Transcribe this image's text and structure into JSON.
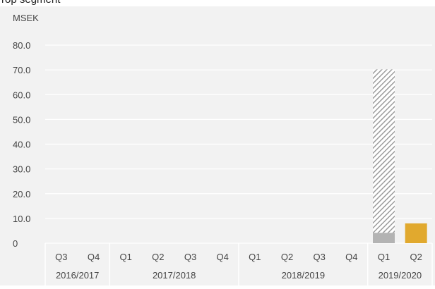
{
  "top_text": "rop segment",
  "chart_data": {
    "type": "bar",
    "unit_label": "MSEK",
    "ylim": [
      0,
      80
    ],
    "y_ticks": [
      "80.0",
      "70.0",
      "60.0",
      "50.0",
      "40.0",
      "30.0",
      "20.0",
      "10.0",
      "0"
    ],
    "y_tick_values": [
      80,
      70,
      60,
      50,
      40,
      30,
      20,
      10,
      0
    ],
    "categories": [
      "Q3",
      "Q4",
      "Q1",
      "Q2",
      "Q3",
      "Q4",
      "Q1",
      "Q2",
      "Q3",
      "Q4",
      "Q1",
      "Q2"
    ],
    "year_groups": [
      {
        "label": "2016/2017",
        "count": 2
      },
      {
        "label": "2017/2018",
        "count": 4
      },
      {
        "label": "2018/2019",
        "count": 4
      },
      {
        "label": "2019/2020",
        "count": 2
      }
    ],
    "series": [
      {
        "values": [
          0,
          0,
          0,
          0,
          0,
          0,
          0,
          0,
          0,
          0,
          4.2,
          0
        ],
        "color": "#b3b3b3"
      },
      {
        "values": [
          0,
          0,
          0,
          0,
          0,
          0,
          0,
          0,
          0,
          0,
          66.0,
          0
        ],
        "color": "#b3b3b3",
        "pattern": "hatched"
      },
      {
        "values": [
          0,
          0,
          0,
          0,
          0,
          0,
          0,
          0,
          0,
          0,
          0,
          8.0
        ],
        "color": "#e1a92e"
      }
    ],
    "grid": true
  }
}
